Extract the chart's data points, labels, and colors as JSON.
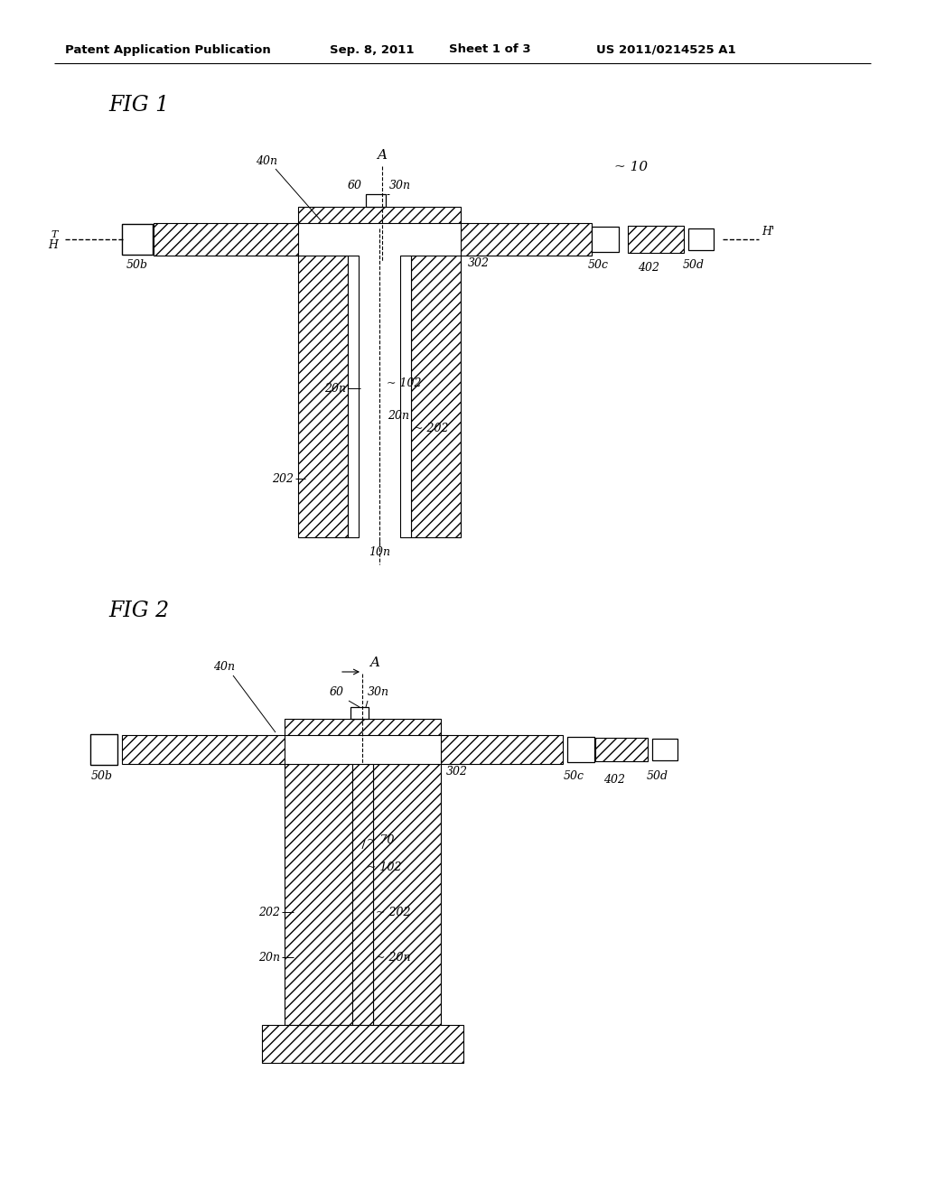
{
  "bg_color": "#ffffff",
  "header_text": "Patent Application Publication",
  "header_date": "Sep. 8, 2011",
  "header_sheet": "Sheet 1 of 3",
  "header_patent": "US 2011/0214525 A1",
  "fig1_label": "FIG 1",
  "fig2_label": "FIG 2"
}
